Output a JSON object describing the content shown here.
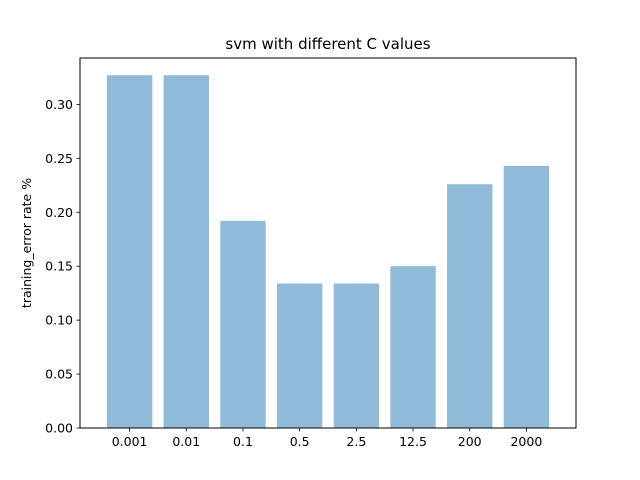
{
  "chart_data": {
    "type": "bar",
    "title": "svm with different C values",
    "xlabel": "",
    "ylabel": "training_error rate %",
    "categories": [
      "0.001",
      "0.01",
      "0.1",
      "0.5",
      "2.5",
      "12.5",
      "200",
      "2000"
    ],
    "values": [
      0.327,
      0.327,
      0.192,
      0.134,
      0.134,
      0.15,
      0.226,
      0.243
    ],
    "ylim": [
      0,
      0.343
    ],
    "yticks": [
      0.0,
      0.05,
      0.1,
      0.15,
      0.2,
      0.25,
      0.3
    ],
    "ytick_labels": [
      "0.00",
      "0.05",
      "0.10",
      "0.15",
      "0.20",
      "0.25",
      "0.30"
    ],
    "bar_color": "#8fbbd9",
    "grid": false,
    "legend": "none"
  }
}
